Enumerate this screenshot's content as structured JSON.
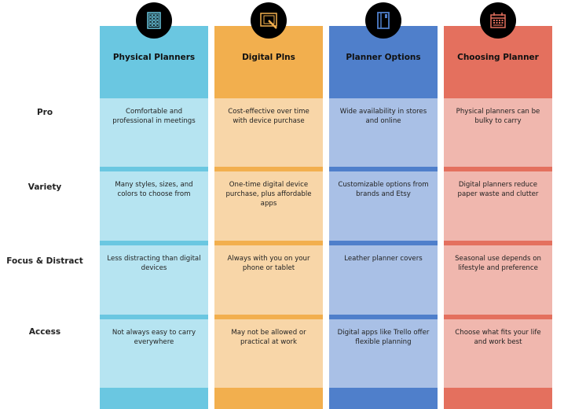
{
  "rows": [
    "Pro",
    "Variety",
    "Focus & Distract",
    "Access"
  ],
  "columns": [
    {
      "title": "Physical Planners",
      "icon": "building-icon",
      "color": "#6AC7E1",
      "light": "#B6E4F1",
      "cells": [
        "Comfortable and professional in meetings",
        "Many styles, sizes, and colors to choose from",
        "Less distracting than digital devices",
        "Not always easy to carry everywhere"
      ]
    },
    {
      "title": "Digital Plns",
      "icon": "drawing-tablet-icon",
      "color": "#F2AF4E",
      "light": "#F8D6A8",
      "cells": [
        "Cost-effective over time with device purchase",
        "One-time digital device purchase, plus affordable apps",
        "Always with you on your phone or tablet",
        "May not be allowed or practical at work"
      ]
    },
    {
      "title": "Planner Options",
      "icon": "notebook-icon",
      "color": "#4F7FCB",
      "light": "#A9C0E6",
      "cells": [
        "Wide availability in stores and online",
        "Customizable options from brands and Etsy",
        "Leather planner covers",
        "Digital apps like Trello offer flexible planning"
      ]
    },
    {
      "title": "Choosing Planner",
      "icon": "calendar-icon",
      "color": "#E4705E",
      "light": "#F0B7AE",
      "cells": [
        "Physical planners can be bulky to carry",
        "Digital planners reduce paper waste and clutter",
        "Seasonal use depends on lifestyle and preference",
        "Choose what fits your life and work best"
      ]
    }
  ]
}
